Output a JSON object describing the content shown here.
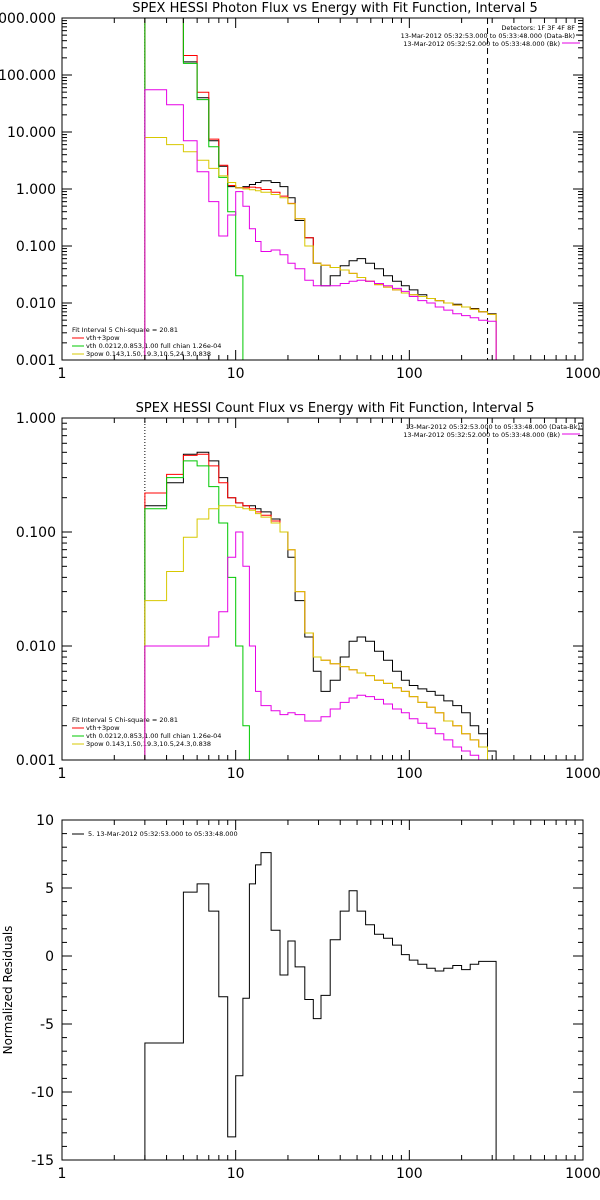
{
  "chart_data": [
    {
      "type": "line",
      "title": "SPEX HESSI Photon Flux vs Energy with Fit Function, Interval 5",
      "xscale": "log",
      "yscale": "log",
      "xlim": [
        1,
        1000
      ],
      "ylim": [
        0.001,
        1000
      ],
      "xticks": [
        "1",
        "10",
        "100",
        "1000"
      ],
      "yticks": [
        "0.001",
        "0.010",
        "0.100",
        "1.000",
        "10.000",
        "100.000",
        "1000.000"
      ],
      "header": [
        "Detectors: 1F 3F 4F 8F",
        "13-Mar-2012 05:32:53.000 to 05:33:48.000 (Data-Bk)",
        "13-Mar-2012 05:32:52.000 to 05:33:48.000 (Bk)"
      ],
      "fit_info": [
        "Fit Interval 5   Chi-square = 20.81",
        "vth+3pow",
        "vth 0.0212,0.853,1.00  full chian 1.26e-04",
        "3pow 0.143,1.50,19.3,10.5,24.3,0.838"
      ],
      "series": [
        {
          "name": "Data-Bk",
          "color": "#000000",
          "x": [
            3,
            4,
            5,
            6,
            7,
            8,
            9,
            10,
            11,
            12,
            13,
            14,
            16,
            18,
            20,
            22,
            25,
            28,
            31,
            35,
            40,
            45,
            50,
            56,
            63,
            71,
            80,
            90,
            100,
            112,
            126,
            141,
            158,
            178,
            200,
            224,
            251,
            282
          ],
          "y": [
            1000,
            1000,
            170,
            40,
            7,
            2.5,
            1.1,
            1.05,
            1.1,
            1.2,
            1.3,
            1.4,
            1.3,
            1.1,
            0.7,
            0.28,
            0.14,
            0.05,
            0.02,
            0.03,
            0.045,
            0.055,
            0.06,
            0.05,
            0.04,
            0.03,
            0.024,
            0.02,
            0.017,
            0.014,
            0.012,
            0.011,
            0.01,
            0.0095,
            0.0085,
            0.008,
            0.007,
            0.0065
          ]
        },
        {
          "name": "vth+3pow",
          "color": "#ff0000",
          "x": [
            3,
            4,
            5,
            6,
            7,
            8,
            9,
            10,
            11,
            12,
            13,
            14,
            16,
            18,
            20,
            22,
            25,
            28,
            31,
            35,
            40,
            45,
            50,
            56,
            63,
            71,
            80,
            90,
            100,
            112,
            126,
            141,
            158,
            178,
            200,
            224,
            251,
            282
          ],
          "y": [
            1000,
            1000,
            220,
            50,
            7.5,
            2.6,
            1.15,
            1.05,
            1.05,
            1.08,
            1.05,
            0.98,
            0.88,
            0.75,
            0.56,
            0.3,
            0.14,
            0.05,
            0.046,
            0.042,
            0.038,
            0.033,
            0.028,
            0.024,
            0.021,
            0.019,
            0.017,
            0.015,
            0.014,
            0.013,
            0.012,
            0.011,
            0.01,
            0.0092,
            0.0085,
            0.0078,
            0.007,
            0.0063
          ]
        },
        {
          "name": "vth",
          "color": "#00c800",
          "x": [
            3,
            4,
            5,
            6,
            7,
            8,
            9,
            10,
            11,
            12
          ],
          "y": [
            1000,
            1000,
            160,
            37,
            5.5,
            1.6,
            0.4,
            0.03,
            0.001,
            0.001
          ]
        },
        {
          "name": "3pow",
          "color": "#d7c800",
          "x": [
            3,
            4,
            5,
            6,
            7,
            8,
            9,
            10,
            11,
            12,
            13,
            14,
            16,
            18,
            20,
            22,
            25,
            28,
            31,
            35,
            40,
            45,
            50,
            56,
            63,
            71,
            80,
            90,
            100,
            112,
            126,
            141,
            158,
            178,
            200,
            224,
            251,
            282
          ],
          "y": [
            8,
            6,
            4.5,
            3.2,
            2.3,
            1.7,
            1.3,
            1.05,
            1.0,
            0.97,
            0.93,
            0.88,
            0.8,
            0.7,
            0.55,
            0.3,
            0.1,
            0.05,
            0.046,
            0.042,
            0.038,
            0.033,
            0.028,
            0.024,
            0.021,
            0.019,
            0.017,
            0.015,
            0.014,
            0.013,
            0.012,
            0.011,
            0.01,
            0.0092,
            0.0085,
            0.0078,
            0.007,
            0.0063
          ]
        },
        {
          "name": "Bk",
          "color": "#e600e6",
          "x": [
            3,
            4,
            5,
            6,
            7,
            8,
            9,
            10,
            11,
            12,
            13,
            14,
            16,
            18,
            20,
            22,
            25,
            28,
            31,
            35,
            40,
            45,
            50,
            56,
            63,
            71,
            80,
            90,
            100,
            112,
            126,
            141,
            158,
            178,
            200,
            224,
            251,
            282
          ],
          "y": [
            55,
            30,
            7,
            2,
            0.6,
            0.15,
            0.35,
            0.9,
            0.5,
            0.2,
            0.12,
            0.08,
            0.085,
            0.07,
            0.05,
            0.04,
            0.025,
            0.02,
            0.02,
            0.02,
            0.022,
            0.024,
            0.025,
            0.024,
            0.022,
            0.02,
            0.018,
            0.016,
            0.013,
            0.011,
            0.01,
            0.0085,
            0.0075,
            0.0065,
            0.006,
            0.0055,
            0.005,
            0.0048
          ]
        }
      ]
    },
    {
      "type": "line",
      "title": "SPEX HESSI Count Flux vs Energy with Fit Function, Interval 5",
      "xscale": "log",
      "yscale": "log",
      "xlim": [
        1,
        1000
      ],
      "ylim": [
        0.001,
        1
      ],
      "xticks": [
        "1",
        "10",
        "100",
        "1000"
      ],
      "yticks": [
        "0.001",
        "0.010",
        "0.100",
        "1.000"
      ],
      "header": [
        "13-Mar-2012 05:32:53.000 to 05:33:48.000 (Data-Bk)",
        "13-Mar-2012 05:32:52.000 to 05:33:48.000 (Bk)"
      ],
      "fit_info": [
        "Fit Interval 5   Chi-square = 20.81",
        "vth+3pow",
        "vth 0.0212,0.853,1.00  full chian 1.26e-04",
        "3pow 0.143,1.50,19.3,10.5,24.3,0.838"
      ],
      "series": [
        {
          "name": "Data-Bk",
          "color": "#000000",
          "x": [
            3,
            4,
            5,
            6,
            7,
            8,
            9,
            10,
            11,
            12,
            13,
            14,
            16,
            18,
            20,
            22,
            25,
            28,
            31,
            35,
            40,
            45,
            50,
            56,
            63,
            71,
            80,
            90,
            100,
            112,
            126,
            141,
            158,
            178,
            200,
            224,
            251,
            282
          ],
          "y": [
            0.17,
            0.27,
            0.48,
            0.5,
            0.42,
            0.3,
            0.2,
            0.18,
            0.17,
            0.17,
            0.16,
            0.15,
            0.13,
            0.1,
            0.06,
            0.025,
            0.012,
            0.006,
            0.004,
            0.005,
            0.008,
            0.011,
            0.012,
            0.011,
            0.009,
            0.0075,
            0.006,
            0.005,
            0.0045,
            0.0042,
            0.004,
            0.0037,
            0.0033,
            0.003,
            0.0026,
            0.002,
            0.0017,
            0.0012
          ]
        },
        {
          "name": "vth+3pow",
          "color": "#ff0000",
          "x": [
            3,
            4,
            5,
            6,
            7,
            8,
            9,
            10,
            11,
            12,
            13,
            14,
            16,
            18,
            20,
            22,
            25,
            28,
            31,
            35,
            40,
            45,
            50,
            56,
            63,
            71,
            80,
            90,
            100,
            112,
            126,
            141,
            158,
            178,
            200,
            224,
            251,
            282
          ],
          "y": [
            0.22,
            0.32,
            0.47,
            0.48,
            0.38,
            0.27,
            0.2,
            0.18,
            0.17,
            0.16,
            0.15,
            0.14,
            0.125,
            0.1,
            0.07,
            0.03,
            0.013,
            0.008,
            0.0075,
            0.007,
            0.0066,
            0.0062,
            0.0058,
            0.0055,
            0.005,
            0.0047,
            0.0043,
            0.004,
            0.0036,
            0.0032,
            0.0029,
            0.0026,
            0.0022,
            0.002,
            0.0017,
            0.0015,
            0.0013,
            0.001
          ]
        },
        {
          "name": "vth",
          "color": "#00c800",
          "x": [
            3,
            4,
            5,
            6,
            7,
            8,
            9,
            10,
            11,
            12
          ],
          "y": [
            0.16,
            0.3,
            0.42,
            0.38,
            0.25,
            0.12,
            0.04,
            0.01,
            0.002,
            0.001
          ]
        },
        {
          "name": "3pow",
          "color": "#d7c800",
          "x": [
            3,
            4,
            5,
            6,
            7,
            8,
            9,
            10,
            11,
            12,
            13,
            14,
            16,
            18,
            20,
            22,
            25,
            28,
            31,
            35,
            40,
            45,
            50,
            56,
            63,
            71,
            80,
            90,
            100,
            112,
            126,
            141,
            158,
            178,
            200,
            224,
            251,
            282
          ],
          "y": [
            0.025,
            0.045,
            0.09,
            0.13,
            0.16,
            0.17,
            0.17,
            0.165,
            0.16,
            0.155,
            0.145,
            0.135,
            0.12,
            0.1,
            0.07,
            0.03,
            0.013,
            0.008,
            0.0075,
            0.007,
            0.0066,
            0.0062,
            0.0058,
            0.0055,
            0.005,
            0.0047,
            0.0043,
            0.004,
            0.0036,
            0.0032,
            0.0029,
            0.0026,
            0.0022,
            0.002,
            0.0017,
            0.0015,
            0.0013,
            0.001
          ]
        },
        {
          "name": "Bk",
          "color": "#e600e6",
          "x": [
            3,
            4,
            5,
            6,
            7,
            8,
            9,
            10,
            11,
            12,
            13,
            14,
            16,
            18,
            20,
            22,
            25,
            28,
            31,
            35,
            40,
            45,
            50,
            56,
            63,
            71,
            80,
            90,
            100,
            112,
            126,
            141,
            158,
            178,
            200,
            224,
            251,
            282
          ],
          "y": [
            0.01,
            0.01,
            0.01,
            0.01,
            0.012,
            0.02,
            0.06,
            0.1,
            0.05,
            0.01,
            0.004,
            0.003,
            0.0027,
            0.0025,
            0.0026,
            0.0025,
            0.0022,
            0.0022,
            0.0024,
            0.0028,
            0.0032,
            0.0035,
            0.0037,
            0.0036,
            0.0034,
            0.0031,
            0.0028,
            0.0026,
            0.0023,
            0.0021,
            0.0019,
            0.0017,
            0.0015,
            0.0013,
            0.0012,
            0.0011,
            0.001,
            0.001
          ]
        }
      ]
    },
    {
      "type": "line",
      "title": "",
      "xscale": "log",
      "xlim": [
        1,
        1000
      ],
      "ylim": [
        -15,
        10
      ],
      "xticks": [
        "1",
        "10",
        "100",
        "1000"
      ],
      "yticks": [
        "-15",
        "-10",
        "-5",
        "0",
        "5",
        "10"
      ],
      "ylabel": "Normalized Residuals",
      "legend": "5. 13-Mar-2012 05:32:53.000 to 05:33:48.000",
      "series": [
        {
          "name": "5. 13-Mar-2012 05:32:53.000 to 05:33:48.000",
          "color": "#000000",
          "x": [
            3,
            4,
            5,
            6,
            7,
            8,
            9,
            10,
            11,
            12,
            13,
            14,
            16,
            18,
            20,
            22,
            25,
            28,
            31,
            35,
            40,
            45,
            50,
            56,
            63,
            71,
            80,
            90,
            100,
            112,
            126,
            141,
            158,
            178,
            200,
            224,
            251,
            282
          ],
          "y": [
            -6.4,
            -6.4,
            4.7,
            5.3,
            3.3,
            -3.0,
            -13.3,
            -8.8,
            -3.1,
            5.3,
            6.7,
            7.6,
            1.9,
            -1.4,
            1.1,
            -0.8,
            -3.2,
            -4.6,
            -2.9,
            1.2,
            3.3,
            4.8,
            3.3,
            2.3,
            1.6,
            1.3,
            0.8,
            0.1,
            -0.3,
            -0.6,
            -0.9,
            -1.1,
            -0.9,
            -0.7,
            -1.0,
            -0.6,
            -0.4,
            -0.4
          ]
        }
      ]
    }
  ]
}
